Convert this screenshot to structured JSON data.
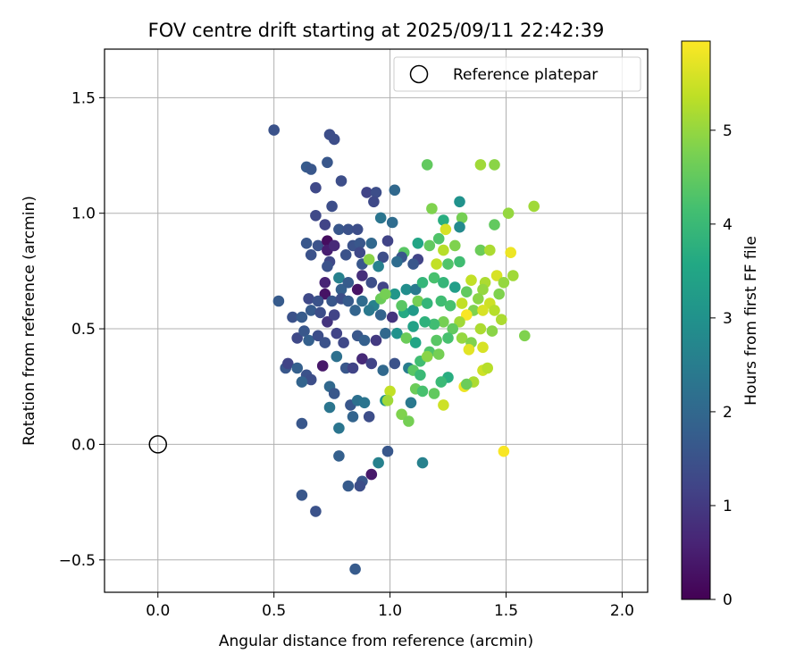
{
  "chart_data": {
    "type": "scatter",
    "title": "FOV centre drift starting at 2025/09/11 22:42:39",
    "xlabel": "Angular distance from reference (arcmin)",
    "ylabel": "Rotation from reference (arcmin)",
    "xlim": [
      -0.23,
      2.11
    ],
    "ylim": [
      -0.64,
      1.71
    ],
    "x_ticks": [
      0.0,
      0.5,
      1.0,
      1.5,
      2.0
    ],
    "x_tick_labels": [
      "0.0",
      "0.5",
      "1.0",
      "1.5",
      "2.0"
    ],
    "y_ticks": [
      -0.5,
      0.0,
      0.5,
      1.0,
      1.5
    ],
    "y_tick_labels": [
      "−0.5",
      "0.0",
      "0.5",
      "1.0",
      "1.5"
    ],
    "grid": true,
    "legend": {
      "position": "top-right",
      "entries": [
        "Reference platepar"
      ]
    },
    "reference_point": {
      "x": 0.0,
      "y": 0.0,
      "label": "Reference platepar"
    },
    "colorbar": {
      "label": "Hours from first FF file",
      "colormap": "viridis",
      "range": [
        0,
        5.95
      ],
      "ticks": [
        0,
        1,
        2,
        3,
        4,
        5
      ],
      "tick_labels": [
        "0",
        "1",
        "2",
        "3",
        "4",
        "5"
      ]
    },
    "series": [
      {
        "columns": [
          "x",
          "y",
          "hours"
        ],
        "points": [
          [
            0.5,
            1.36,
            1.5
          ],
          [
            0.74,
            1.34,
            1.4
          ],
          [
            0.76,
            1.32,
            1.4
          ],
          [
            0.73,
            1.22,
            1.6
          ],
          [
            0.64,
            1.2,
            1.7
          ],
          [
            0.66,
            1.19,
            1.6
          ],
          [
            0.79,
            1.14,
            1.4
          ],
          [
            0.68,
            1.11,
            1.3
          ],
          [
            0.9,
            1.09,
            1.2
          ],
          [
            0.94,
            1.09,
            1.4
          ],
          [
            1.02,
            1.1,
            2.0
          ],
          [
            0.93,
            1.05,
            1.3
          ],
          [
            0.75,
            1.03,
            1.4
          ],
          [
            0.68,
            0.99,
            1.3
          ],
          [
            0.72,
            0.95,
            1.2
          ],
          [
            0.78,
            0.93,
            1.6
          ],
          [
            0.82,
            0.93,
            1.5
          ],
          [
            0.86,
            0.93,
            1.4
          ],
          [
            0.96,
            0.98,
            2.3
          ],
          [
            1.01,
            0.96,
            2.1
          ],
          [
            0.64,
            0.87,
            1.6
          ],
          [
            0.69,
            0.86,
            1.5
          ],
          [
            0.73,
            0.88,
            0.2
          ],
          [
            0.73,
            0.84,
            0.5
          ],
          [
            0.76,
            0.86,
            0.7
          ],
          [
            0.84,
            0.86,
            1.5
          ],
          [
            0.87,
            0.87,
            1.6
          ],
          [
            0.87,
            0.83,
            1.3
          ],
          [
            0.92,
            0.87,
            2.0
          ],
          [
            0.99,
            0.88,
            1.2
          ],
          [
            1.06,
            0.83,
            4.4
          ],
          [
            0.66,
            0.82,
            1.5
          ],
          [
            0.74,
            0.79,
            1.3
          ],
          [
            0.81,
            0.82,
            1.5
          ],
          [
            0.97,
            0.81,
            1.4
          ],
          [
            1.05,
            0.81,
            1.6
          ],
          [
            1.12,
            0.8,
            1.2
          ],
          [
            0.73,
            0.77,
            1.5
          ],
          [
            0.88,
            0.78,
            1.6
          ],
          [
            0.95,
            0.77,
            2.6
          ],
          [
            1.03,
            0.79,
            2.1
          ],
          [
            1.1,
            0.78,
            1.6
          ],
          [
            0.88,
            0.73,
            0.8
          ],
          [
            0.78,
            0.72,
            2.6
          ],
          [
            0.72,
            0.7,
            0.6
          ],
          [
            0.72,
            0.65,
            0.3
          ],
          [
            0.79,
            0.67,
            1.8
          ],
          [
            0.82,
            0.7,
            1.7
          ],
          [
            0.86,
            0.67,
            0.3
          ],
          [
            0.92,
            0.7,
            1.4
          ],
          [
            0.97,
            0.68,
            1.2
          ],
          [
            0.65,
            0.63,
            1.3
          ],
          [
            0.69,
            0.62,
            1.5
          ],
          [
            0.75,
            0.62,
            1.6
          ],
          [
            0.79,
            0.63,
            1.4
          ],
          [
            0.82,
            0.62,
            1.7
          ],
          [
            0.52,
            0.62,
            1.7
          ],
          [
            0.88,
            0.62,
            2.1
          ],
          [
            0.93,
            0.6,
            2.6
          ],
          [
            0.96,
            0.63,
            4.6
          ],
          [
            1.02,
            0.65,
            3.1
          ],
          [
            1.07,
            0.67,
            2.9
          ],
          [
            1.11,
            0.67,
            2.4
          ],
          [
            1.14,
            0.7,
            3.9
          ],
          [
            0.58,
            0.55,
            1.5
          ],
          [
            0.62,
            0.55,
            1.7
          ],
          [
            0.66,
            0.58,
            1.7
          ],
          [
            0.7,
            0.57,
            1.4
          ],
          [
            0.73,
            0.53,
            0.9
          ],
          [
            0.76,
            0.56,
            1.2
          ],
          [
            0.85,
            0.58,
            1.9
          ],
          [
            0.91,
            0.58,
            2.4
          ],
          [
            0.96,
            0.56,
            1.9
          ],
          [
            1.01,
            0.55,
            0.9
          ],
          [
            1.06,
            0.57,
            3.6
          ],
          [
            1.1,
            0.58,
            3.2
          ],
          [
            0.6,
            0.46,
            1.3
          ],
          [
            0.63,
            0.49,
            1.6
          ],
          [
            0.65,
            0.45,
            1.8
          ],
          [
            0.69,
            0.47,
            1.4
          ],
          [
            0.72,
            0.44,
            1.5
          ],
          [
            0.77,
            0.48,
            1.2
          ],
          [
            0.8,
            0.44,
            1.3
          ],
          [
            0.86,
            0.47,
            1.6
          ],
          [
            0.89,
            0.45,
            1.8
          ],
          [
            0.94,
            0.45,
            1.0
          ],
          [
            0.98,
            0.48,
            2.0
          ],
          [
            1.03,
            0.48,
            3.0
          ],
          [
            1.07,
            0.46,
            4.6
          ],
          [
            1.11,
            0.44,
            3.5
          ],
          [
            0.55,
            0.33,
            1.6
          ],
          [
            0.56,
            0.35,
            1.2
          ],
          [
            0.6,
            0.33,
            1.8
          ],
          [
            0.64,
            0.3,
            1.5
          ],
          [
            0.66,
            0.28,
            1.4
          ],
          [
            0.71,
            0.34,
            0.4
          ],
          [
            0.77,
            0.38,
            2.2
          ],
          [
            0.81,
            0.33,
            1.6
          ],
          [
            0.84,
            0.33,
            1.2
          ],
          [
            0.88,
            0.37,
            0.7
          ],
          [
            0.92,
            0.35,
            1.2
          ],
          [
            0.97,
            0.32,
            2.0
          ],
          [
            1.02,
            0.35,
            1.5
          ],
          [
            1.08,
            0.33,
            2.5
          ],
          [
            0.62,
            0.27,
            1.9
          ],
          [
            0.74,
            0.25,
            2.0
          ],
          [
            0.76,
            0.22,
            1.6
          ],
          [
            0.83,
            0.17,
            1.6
          ],
          [
            0.86,
            0.19,
            2.2
          ],
          [
            0.89,
            0.18,
            2.3
          ],
          [
            0.98,
            0.19,
            3.0
          ],
          [
            1.09,
            0.18,
            2.4
          ],
          [
            0.74,
            0.16,
            2.3
          ],
          [
            0.84,
            0.12,
            1.9
          ],
          [
            0.91,
            0.12,
            1.4
          ],
          [
            0.78,
            0.07,
            2.3
          ],
          [
            0.62,
            0.09,
            1.6
          ],
          [
            0.99,
            -0.03,
            1.6
          ],
          [
            0.92,
            -0.13,
            0.4
          ],
          [
            0.88,
            -0.16,
            1.6
          ],
          [
            0.87,
            -0.18,
            1.4
          ],
          [
            0.82,
            -0.18,
            1.7
          ],
          [
            0.78,
            -0.05,
            1.8
          ],
          [
            0.62,
            -0.22,
            1.6
          ],
          [
            0.68,
            -0.29,
            1.5
          ],
          [
            0.85,
            -0.54,
            1.7
          ],
          [
            0.95,
            -0.08,
            2.6
          ],
          [
            1.14,
            -0.08,
            2.6
          ],
          [
            1.16,
            1.21,
            4.5
          ],
          [
            1.39,
            1.21,
            5.1
          ],
          [
            1.45,
            1.21,
            4.9
          ],
          [
            1.18,
            1.02,
            4.8
          ],
          [
            1.3,
            1.05,
            3.0
          ],
          [
            1.31,
            0.98,
            4.7
          ],
          [
            1.23,
            0.97,
            3.7
          ],
          [
            1.51,
            1.0,
            5.0
          ],
          [
            1.62,
            1.03,
            5.1
          ],
          [
            1.45,
            0.95,
            4.5
          ],
          [
            1.3,
            0.94,
            2.8
          ],
          [
            1.24,
            0.93,
            5.6
          ],
          [
            1.21,
            0.89,
            4.3
          ],
          [
            1.12,
            0.87,
            3.5
          ],
          [
            1.17,
            0.86,
            4.5
          ],
          [
            1.23,
            0.84,
            5.3
          ],
          [
            1.28,
            0.86,
            4.8
          ],
          [
            1.39,
            0.84,
            4.6
          ],
          [
            1.43,
            0.84,
            5.2
          ],
          [
            1.52,
            0.83,
            5.8
          ],
          [
            1.2,
            0.78,
            5.4
          ],
          [
            1.25,
            0.78,
            4.3
          ],
          [
            1.3,
            0.79,
            4.1
          ],
          [
            1.35,
            0.71,
            5.4
          ],
          [
            1.41,
            0.7,
            5.2
          ],
          [
            1.46,
            0.73,
            5.6
          ],
          [
            1.53,
            0.73,
            5.1
          ],
          [
            1.49,
            0.7,
            5.0
          ],
          [
            1.19,
            0.72,
            4.2
          ],
          [
            1.23,
            0.7,
            3.9
          ],
          [
            1.28,
            0.68,
            3.3
          ],
          [
            1.33,
            0.66,
            4.5
          ],
          [
            1.4,
            0.67,
            5.0
          ],
          [
            1.43,
            0.61,
            5.5
          ],
          [
            1.47,
            0.65,
            4.8
          ],
          [
            1.38,
            0.63,
            4.9
          ],
          [
            1.12,
            0.62,
            4.7
          ],
          [
            1.16,
            0.61,
            3.9
          ],
          [
            1.22,
            0.62,
            4.1
          ],
          [
            1.26,
            0.6,
            4.2
          ],
          [
            1.31,
            0.61,
            5.4
          ],
          [
            1.36,
            0.58,
            4.8
          ],
          [
            1.4,
            0.58,
            5.6
          ],
          [
            1.45,
            0.58,
            5.3
          ],
          [
            1.48,
            0.54,
            5.2
          ],
          [
            1.33,
            0.56,
            5.9
          ],
          [
            1.3,
            0.53,
            5.1
          ],
          [
            1.27,
            0.5,
            4.5
          ],
          [
            1.23,
            0.53,
            4.7
          ],
          [
            1.19,
            0.52,
            4.1
          ],
          [
            1.15,
            0.53,
            3.8
          ],
          [
            1.1,
            0.51,
            3.4
          ],
          [
            1.39,
            0.5,
            5.2
          ],
          [
            1.44,
            0.49,
            4.9
          ],
          [
            1.58,
            0.47,
            4.8
          ],
          [
            1.2,
            0.45,
            4.4
          ],
          [
            1.25,
            0.46,
            4.2
          ],
          [
            1.31,
            0.46,
            5.0
          ],
          [
            1.35,
            0.44,
            4.8
          ],
          [
            1.4,
            0.42,
            5.6
          ],
          [
            1.34,
            0.41,
            5.7
          ],
          [
            1.17,
            0.4,
            4.3
          ],
          [
            1.21,
            0.39,
            4.7
          ],
          [
            1.13,
            0.36,
            4.1
          ],
          [
            1.16,
            0.38,
            4.9
          ],
          [
            1.1,
            0.32,
            4.4
          ],
          [
            1.13,
            0.3,
            4.0
          ],
          [
            1.4,
            0.32,
            5.5
          ],
          [
            1.42,
            0.33,
            5.3
          ],
          [
            1.25,
            0.29,
            3.7
          ],
          [
            1.36,
            0.27,
            5.2
          ],
          [
            1.32,
            0.25,
            5.8
          ],
          [
            1.33,
            0.26,
            4.6
          ],
          [
            1.22,
            0.27,
            4.0
          ],
          [
            1.11,
            0.24,
            4.6
          ],
          [
            1.14,
            0.23,
            4.2
          ],
          [
            1.19,
            0.22,
            4.5
          ],
          [
            1.0,
            0.23,
            5.4
          ],
          [
            0.99,
            0.19,
            5.1
          ],
          [
            1.23,
            0.17,
            5.5
          ],
          [
            1.05,
            0.13,
            4.8
          ],
          [
            1.08,
            0.1,
            4.7
          ],
          [
            1.49,
            -0.03,
            5.9
          ],
          [
            0.91,
            0.8,
            4.9
          ],
          [
            0.98,
            0.65,
            4.7
          ],
          [
            1.05,
            0.6,
            4.4
          ]
        ]
      }
    ]
  }
}
